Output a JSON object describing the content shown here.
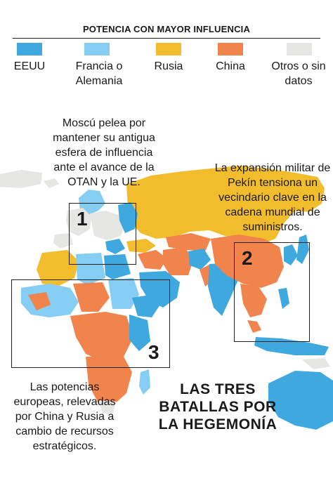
{
  "legend": {
    "title": "POTENCIA CON MAYOR INFLUENCIA",
    "items": [
      {
        "label": "EEUU",
        "color": "#3ea8df"
      },
      {
        "label": "Francia o Alemania",
        "color": "#85cdf2"
      },
      {
        "label": "Rusia",
        "color": "#f2bd2d"
      },
      {
        "label": "China",
        "color": "#f1834c"
      },
      {
        "label": "Otros o sin datos",
        "color": "#e6e6e4"
      }
    ]
  },
  "annotations": {
    "russia": "Moscú pelea por mantener su antigua esfera de influencia ante el avance de la OTAN y la UE.",
    "china": "La expansión militar de Pekín tensiona un vecindario clave en la cadena mundial de suministros.",
    "africa": "Las potencias europeas, relevadas por China y Rusia a cambio de recursos estratégicos."
  },
  "boxes": [
    {
      "number": "1"
    },
    {
      "number": "2"
    },
    {
      "number": "3"
    }
  ],
  "headline": "LAS TRES BATALLAS POR LA HEGEMONÍA",
  "colors": {
    "usa": "#3ea8df",
    "france_germany": "#85cdf2",
    "russia": "#f2bd2d",
    "china": "#f1834c",
    "other": "#e6e6e4"
  }
}
